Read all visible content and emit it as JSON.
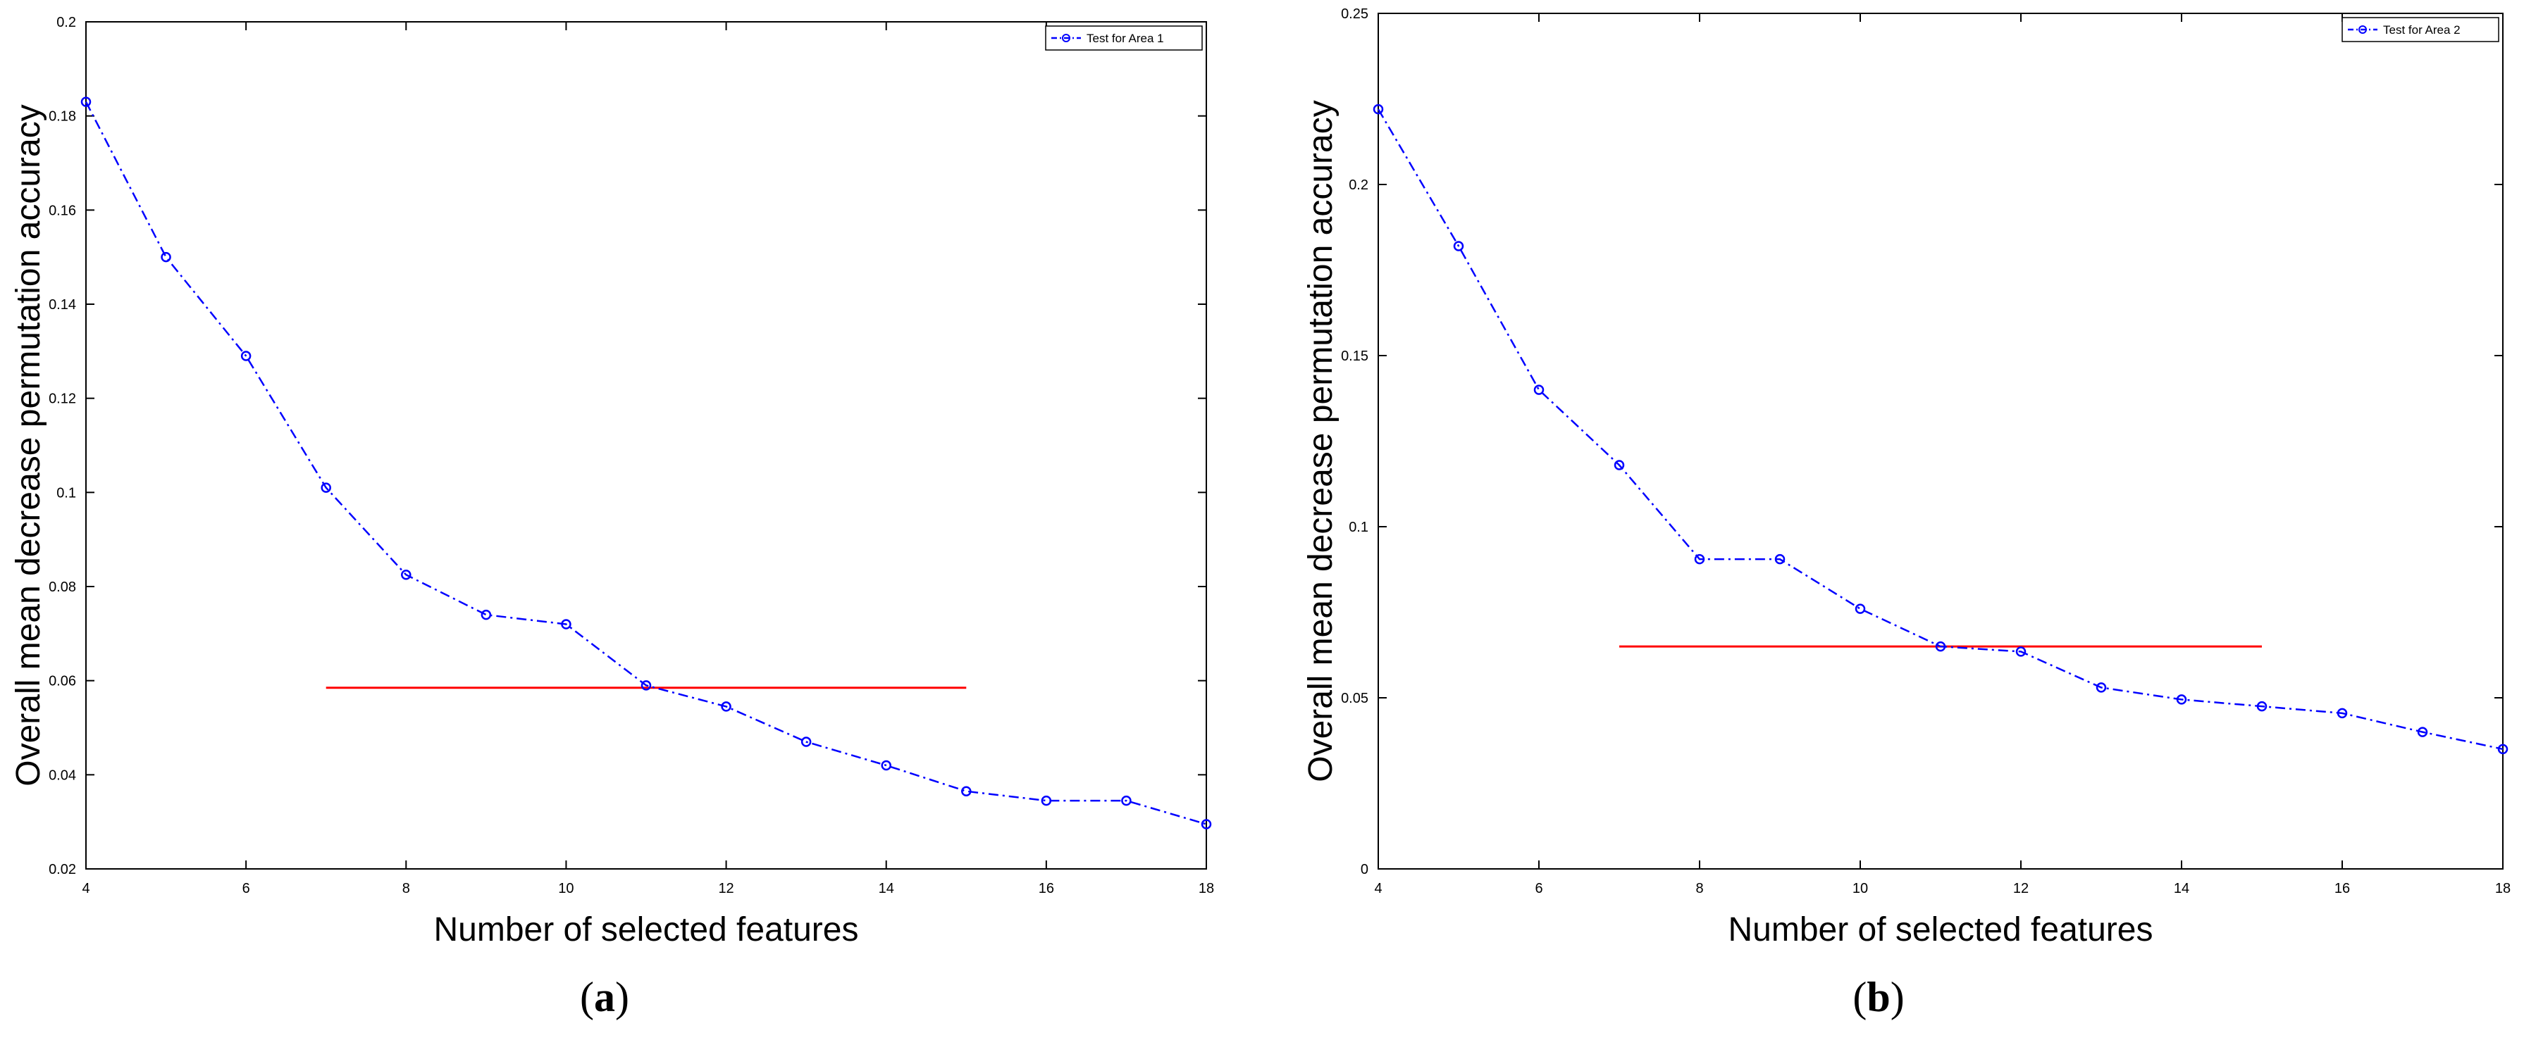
{
  "colors": {
    "series": "#0000ff",
    "threshold": "#ff0000",
    "axis": "#000000",
    "background": "#ffffff"
  },
  "panels": [
    {
      "label_bold": "a",
      "label_open": "(",
      "label_close": ")"
    },
    {
      "label_bold": "b",
      "label_open": "(",
      "label_close": ")"
    }
  ],
  "chart_data": [
    {
      "type": "line",
      "xlabel": "Number of selected features",
      "ylabel": "Overall mean decrease permutation accuracy",
      "xlim": [
        4,
        18
      ],
      "ylim": [
        0.02,
        0.2
      ],
      "xticks": [
        4,
        6,
        8,
        10,
        12,
        14,
        16,
        18
      ],
      "xtick_labels": [
        "4",
        "6",
        "8",
        "10",
        "12",
        "14",
        "16",
        "18"
      ],
      "yticks": [
        0.02,
        0.04,
        0.06,
        0.08,
        0.1,
        0.12,
        0.14,
        0.16,
        0.18,
        0.2
      ],
      "ytick_labels": [
        "0.02",
        "0.04",
        "0.06",
        "0.08",
        "0.1",
        "0.12",
        "0.14",
        "0.16",
        "0.18",
        "0.2"
      ],
      "grid": false,
      "legend_position": "top-right",
      "series": [
        {
          "name": "Test for Area 1",
          "style": "dash-dot line with circle markers",
          "x": [
            4,
            5,
            6,
            7,
            8,
            9,
            10,
            11,
            12,
            13,
            14,
            15,
            16,
            17,
            18
          ],
          "y": [
            0.183,
            0.15,
            0.129,
            0.101,
            0.0825,
            0.074,
            0.072,
            0.059,
            0.0545,
            0.047,
            0.042,
            0.0365,
            0.0345,
            0.0345,
            0.0295
          ]
        }
      ],
      "threshold_line": {
        "x": [
          7,
          15
        ],
        "y": 0.0585
      }
    },
    {
      "type": "line",
      "xlabel": "Number of selected features",
      "ylabel": "Overall mean decrease permutation accuracy",
      "xlim": [
        4,
        18
      ],
      "ylim": [
        0,
        0.25
      ],
      "xticks": [
        4,
        6,
        8,
        10,
        12,
        14,
        16,
        18
      ],
      "xtick_labels": [
        "4",
        "6",
        "8",
        "10",
        "12",
        "14",
        "16",
        "18"
      ],
      "yticks": [
        0,
        0.05,
        0.1,
        0.15,
        0.2,
        0.25
      ],
      "ytick_labels": [
        "0",
        "0.05",
        "0.1",
        "0.15",
        "0.2",
        "0.25"
      ],
      "grid": false,
      "legend_position": "top-right",
      "series": [
        {
          "name": "Test for Area 2",
          "style": "dash-dot line with circle markers",
          "x": [
            4,
            5,
            6,
            7,
            8,
            9,
            10,
            11,
            12,
            13,
            14,
            15,
            16,
            17,
            18
          ],
          "y": [
            0.222,
            0.182,
            0.14,
            0.118,
            0.0905,
            0.0905,
            0.076,
            0.065,
            0.0635,
            0.053,
            0.0495,
            0.0475,
            0.0455,
            0.04,
            0.035
          ]
        }
      ],
      "threshold_line": {
        "x": [
          7,
          15
        ],
        "y": 0.065
      }
    }
  ]
}
